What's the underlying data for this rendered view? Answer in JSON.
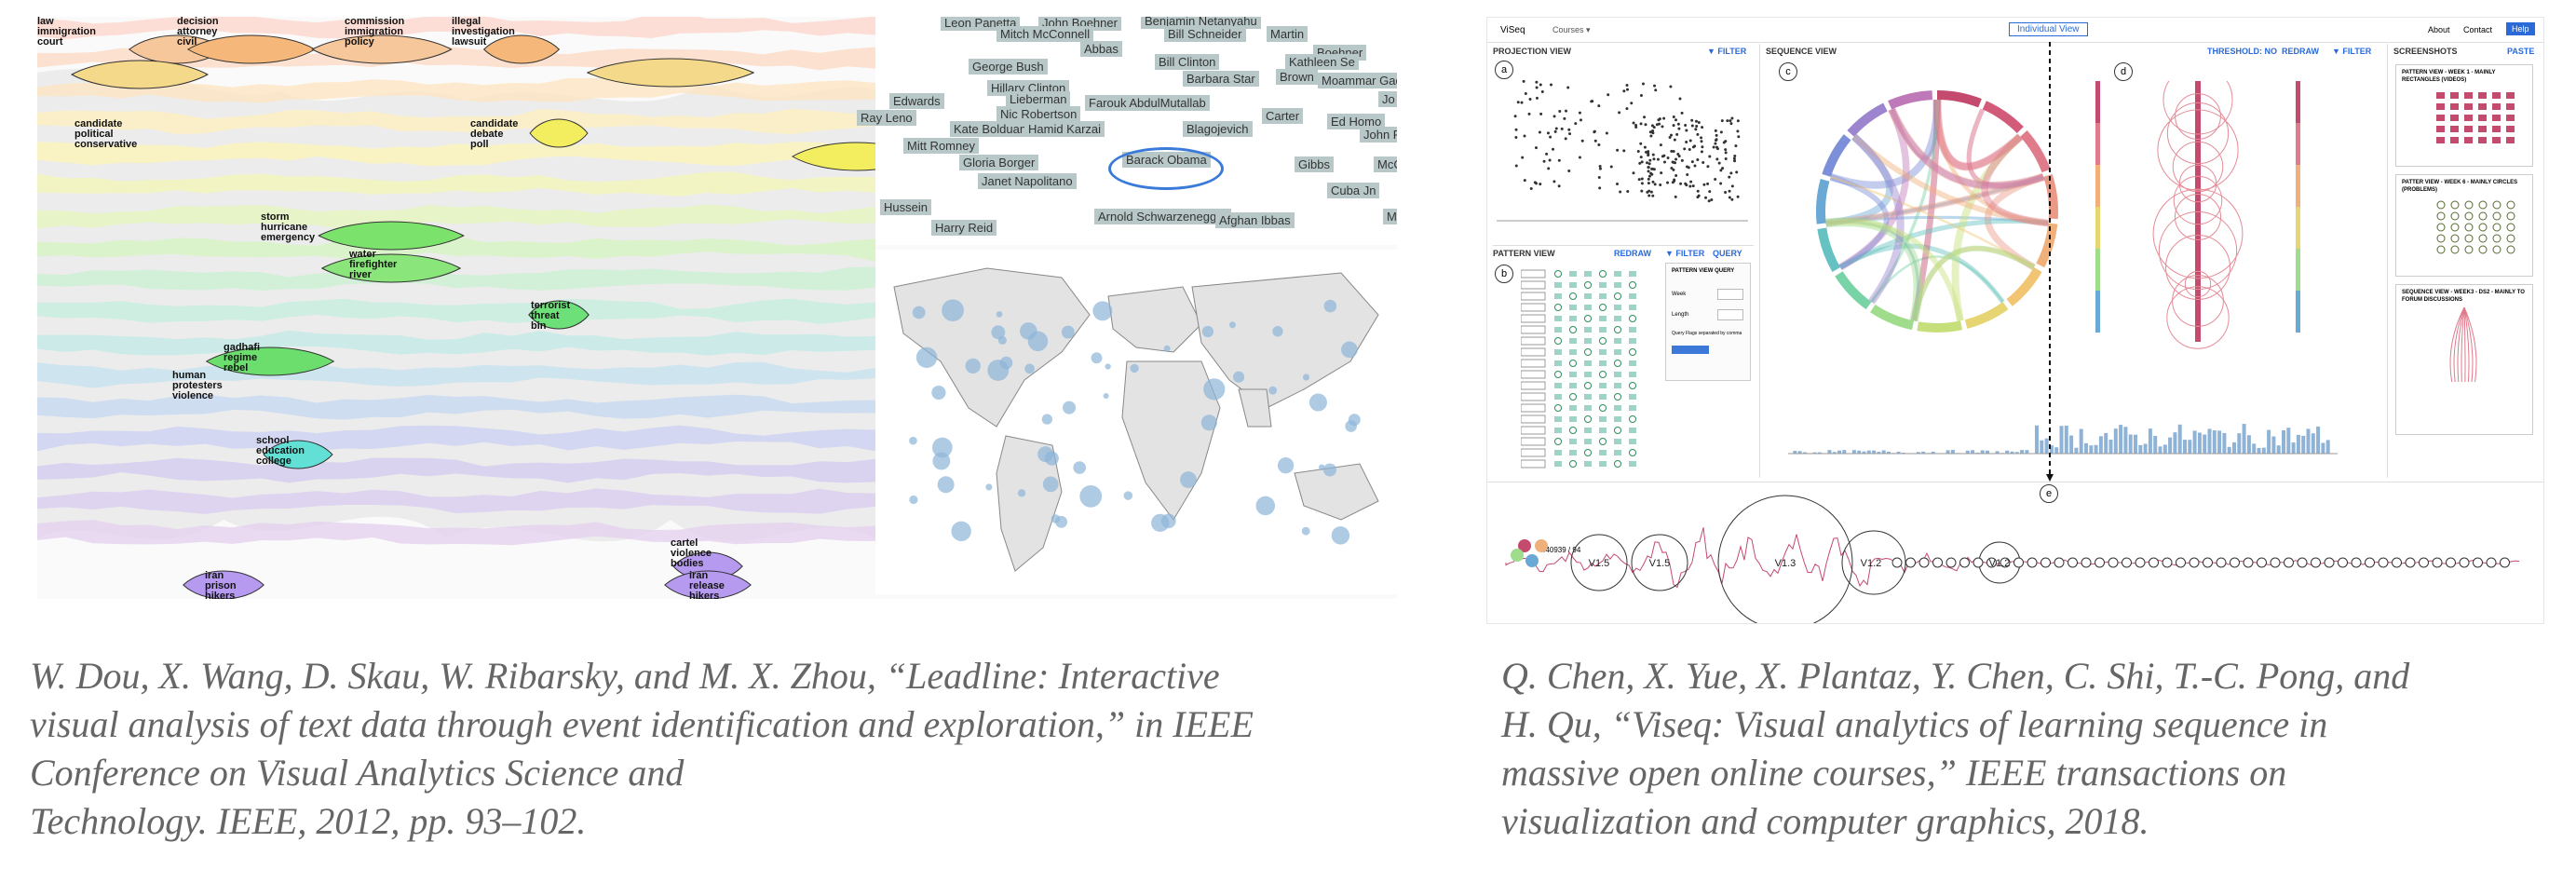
{
  "leadline": {
    "topic_labels": [
      {
        "lines": [
          "law",
          "immigration",
          "court"
        ]
      },
      {
        "lines": [
          "decision",
          "attorney",
          "civil"
        ]
      },
      {
        "lines": [
          "commission",
          "immigration",
          "policy"
        ]
      },
      {
        "lines": [
          "illegal",
          "investigation",
          "lawsuit"
        ]
      },
      {
        "lines": [
          "candidate",
          "political",
          "conservative"
        ]
      },
      {
        "lines": [
          "candidate",
          "debate",
          "poll"
        ]
      },
      {
        "lines": [
          "storm",
          "hurricane",
          "emergency"
        ]
      },
      {
        "lines": [
          "water",
          "firefighter",
          "river"
        ]
      },
      {
        "lines": [
          "terrorist",
          "threat",
          "bin"
        ]
      },
      {
        "lines": [
          "gadhafi",
          "regime",
          "rebel"
        ]
      },
      {
        "lines": [
          "human",
          "protesters",
          "violence"
        ]
      },
      {
        "lines": [
          "school",
          "education",
          "college"
        ]
      },
      {
        "lines": [
          "cartel",
          "violence",
          "bodies"
        ]
      },
      {
        "lines": [
          "iran",
          "prison",
          "hikers"
        ]
      },
      {
        "lines": [
          "iran",
          "release",
          "hikers"
        ]
      }
    ],
    "people": [
      "Leon Panetta",
      "John Boehner",
      "Benjamin Netanyahu",
      "Mitch McConnell",
      "Bill Schneider",
      "Martin",
      "Abbas",
      "Boehner",
      "Kathleen Se",
      "George Bush",
      "Bill Clinton",
      "Hillary Clinton",
      "Barbara Star",
      "Brown",
      "Moammar Gadhafi",
      "Edwards",
      "Lieberman",
      "Farouk AbdulMutallab",
      "Jo",
      "Ray Leno",
      "Nic Robertson",
      "Carter",
      "Ed Homo",
      "Kate Bolduan",
      "Hamid Karzai",
      "Blagojevich",
      "John R",
      "Mitt Romney",
      "Gibbs",
      "Gloria Borger",
      "Barack Obama",
      "McC",
      "Janet Napolitano",
      "Cuba Jn",
      "Hussein",
      "Arnold Schwarzenegger",
      "Afghan Ibbas",
      "Harry Reid",
      "M"
    ],
    "highlighted_person": "Barack Obama"
  },
  "viseq": {
    "app_title": "ViSeq",
    "courses_menu": "Courses ▾",
    "individual_view": "Individual View",
    "nav": [
      "About",
      "Contact",
      "Help"
    ],
    "projection_view": {
      "title": "PROJECTION VIEW",
      "filter": "▼ FILTER",
      "letter": "a"
    },
    "sequence_view": {
      "title": "SEQUENCE VIEW",
      "threshold": "THRESHOLD: NO",
      "redraw": "REDRAW",
      "filter": "▼ FILTER",
      "letter_c": "c",
      "letter_d": "d"
    },
    "pattern_view": {
      "title": "PATTERN VIEW",
      "redraw": "REDRAW",
      "filter": "▼ FILTER",
      "query": "QUERY",
      "letter": "b",
      "query_box": {
        "title": "PATTERN VIEW QUERY",
        "fields": [
          "Week",
          "Length"
        ],
        "note": "Query Flags separated by comma"
      }
    },
    "screenshots": {
      "title": "SCREENSHOTS",
      "paste": "PASTE",
      "items": [
        "PATTERN VIEW - WEEK 1 - MAINLY RECTANGLES (VIDEOS)",
        "PATTER VIEW - WEEK 6 - MAINLY CIRCLES (PROBLEMS)",
        "SEQUENCE VIEW - WEEK3 - DS2 - MAINLY TO FORUM DISCUSSIONS"
      ]
    },
    "individual": {
      "letter": "e",
      "count": "440939 / 94",
      "node_labels": [
        "V1.5",
        "V1.5",
        "V1.3",
        "V1.2",
        "V1.2"
      ]
    }
  },
  "captions": {
    "left": [
      "W. Dou, X. Wang, D. Skau, W. Ribarsky, and M. X. Zhou, “Leadline: Interactive",
      "visual analysis of text data through event identification and exploration,” in IEEE",
      "Conference on Visual Analytics Science and",
      "Technology. IEEE, 2012, pp. 93–102."
    ],
    "right": [
      "Q. Chen, X. Yue, X. Plantaz, Y. Chen, C. Shi, T.-C. Pong, and",
      "H. Qu, “Viseq: Visual analytics of learning sequence in",
      "massive open online courses,” IEEE transactions on",
      "visualization and computer graphics, 2018."
    ]
  }
}
